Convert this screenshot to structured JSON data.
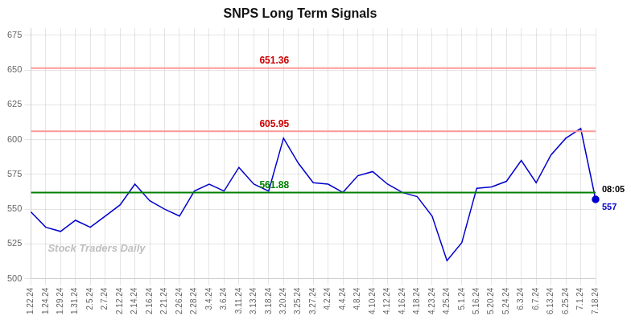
{
  "chart_data": {
    "type": "line",
    "title": "SNPS Long Term Signals",
    "watermark": "Stock Traders Daily",
    "categories": [
      "1.22.24",
      "1.24.24",
      "1.29.24",
      "1.31.24",
      "2.5.24",
      "2.7.24",
      "2.12.24",
      "2.14.24",
      "2.16.24",
      "2.21.24",
      "2.26.24",
      "2.28.24",
      "3.4.24",
      "3.6.24",
      "3.11.24",
      "3.13.24",
      "3.18.24",
      "3.20.24",
      "3.25.24",
      "3.27.24",
      "4.2.24",
      "4.4.24",
      "4.8.24",
      "4.10.24",
      "4.12.24",
      "4.16.24",
      "4.18.24",
      "4.23.24",
      "4.25.24",
      "5.1.24",
      "5.16.24",
      "5.20.24",
      "5.24.24",
      "6.3.24",
      "6.7.24",
      "6.13.24",
      "6.25.24",
      "7.1.24",
      "7.18.24"
    ],
    "values": [
      548,
      537,
      534,
      542,
      537,
      545,
      553,
      568,
      556,
      550,
      545,
      563,
      568,
      563,
      580,
      568,
      563,
      601,
      583,
      569,
      568,
      562,
      574,
      577,
      568,
      562,
      559,
      545,
      513,
      526,
      565,
      566,
      570,
      585,
      569,
      589,
      601,
      608,
      557
    ],
    "color": "#0000cc",
    "hlines": [
      {
        "value": 605.95,
        "color": "#ff9999",
        "label": "605.95",
        "label_color": "#cc0000"
      },
      {
        "value": 651.36,
        "color": "#ff9999",
        "label": "651.36",
        "label_color": "#cc0000"
      },
      {
        "value": 561.88,
        "color": "#008000",
        "label": "561.88",
        "label_color": "#008000"
      }
    ],
    "last_point": {
      "time_label": "08:05",
      "value_label": "557",
      "color": "#0000cc"
    },
    "ylim": [
      500,
      680
    ],
    "yticks": [
      500,
      525,
      550,
      575,
      600,
      625,
      650,
      675
    ],
    "grid": true
  }
}
